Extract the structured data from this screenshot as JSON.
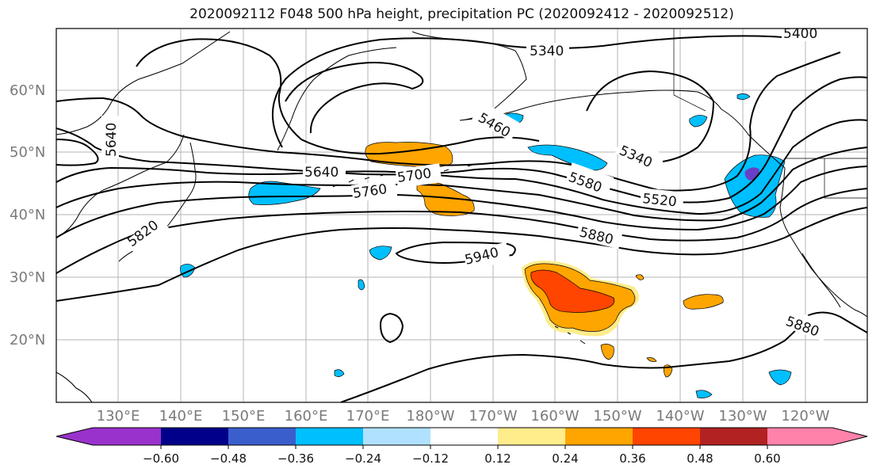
{
  "title": "2020092112 F048 500 hPa height, precipitation PC (2020092412 - 2020092512)",
  "lat_labels": [
    "60°N",
    "50°N",
    "40°N",
    "30°N",
    "20°N"
  ],
  "lon_labels": [
    "130°E",
    "140°E",
    "150°E",
    "160°E",
    "170°E",
    "180°W",
    "170°W",
    "160°W",
    "150°W",
    "140°W",
    "130°W",
    "120°W"
  ],
  "colorbar": {
    "ticks": [
      "−0.60",
      "−0.48",
      "−0.36",
      "−0.24",
      "−0.12",
      "0.12",
      "0.24",
      "0.36",
      "0.48",
      "0.60"
    ],
    "colors": [
      "#9932cc",
      "#00008b",
      "#3a5fcd",
      "#00bfff",
      "#b0e2ff",
      "#ffffff",
      "#ffec8b",
      "#ffa500",
      "#ff4500",
      "#b22222",
      "#ff82ab"
    ]
  },
  "contour_labels": [
    "5340",
    "5400",
    "5640",
    "5460",
    "5340",
    "5640",
    "5700",
    "5760",
    "5580",
    "5520",
    "5880",
    "5940",
    "5820",
    "5880"
  ],
  "colors": {
    "grid": "#b5b5b5",
    "orange": "#ffa500",
    "red_orange": "#ff4500",
    "light_yellow": "#ffec8b",
    "sky_blue": "#00bfff",
    "light_blue": "#b0e2ff",
    "purple": "#6a3fc7"
  }
}
